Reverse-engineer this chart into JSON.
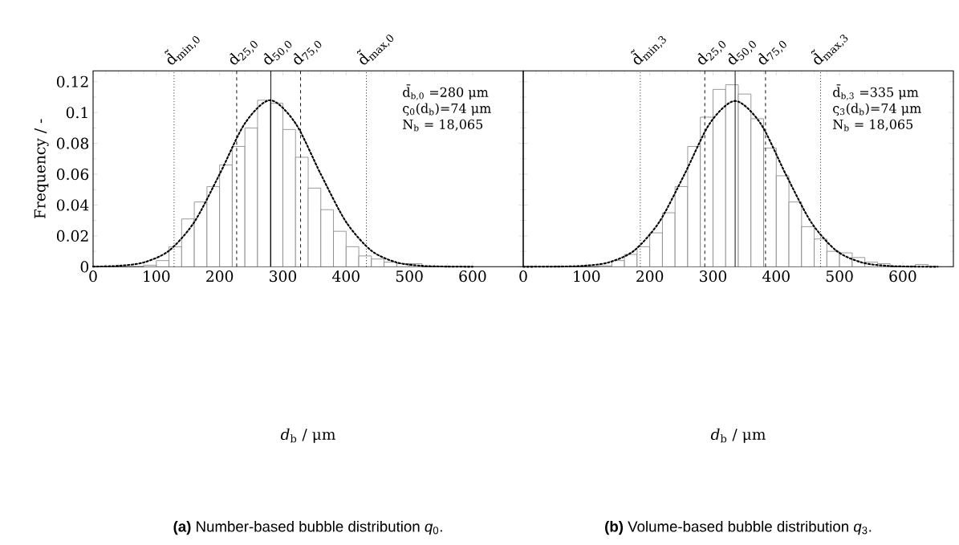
{
  "chart_data": [
    {
      "type": "histogram",
      "xlabel": "*d*$_{b}$ / μm",
      "ylabel": "Frequency / -",
      "color": "#808080",
      "bins": [
        80,
        100,
        120,
        140,
        160,
        180,
        200,
        220,
        240,
        260,
        280,
        300,
        320,
        340,
        360,
        380,
        400,
        420,
        440,
        460,
        480,
        500,
        520,
        540,
        560,
        580,
        600
      ],
      "values": [
        0.001,
        0.004,
        0.013,
        0.031,
        0.042,
        0.052,
        0.066,
        0.078,
        0.09,
        0.108,
        0.106,
        0.089,
        0.071,
        0.051,
        0.037,
        0.023,
        0.013,
        0.007,
        0.005,
        0.003,
        0.002,
        0.002,
        null,
        null,
        null,
        null
      ],
      "series": [
        {
          "type": "line",
          "line_style": "dotted",
          "color": "#000000",
          "x": [
            0,
            40,
            80,
            120,
            160,
            200,
            240,
            280,
            320,
            360,
            400,
            440,
            480,
            520,
            560,
            600
          ],
          "values": [
            0.0001,
            0.0006,
            0.0028,
            0.0104,
            0.029,
            0.06,
            0.093,
            0.108,
            0.093,
            0.06,
            0.029,
            0.0104,
            0.0028,
            0.0006,
            0.0001,
            0
          ]
        }
      ],
      "xlim": [
        0,
        680
      ],
      "ylim": [
        0,
        0.127
      ],
      "xticks": [
        0,
        100,
        200,
        300,
        400,
        500,
        600
      ],
      "yticks": [
        0,
        0.02,
        0.04,
        0.06,
        0.08,
        0.1,
        0.12
      ],
      "ref_lines": [
        {
          "axis": "x",
          "value": 128,
          "label": "d̃$_{min,0}$",
          "line_style": "dotted"
        },
        {
          "axis": "x",
          "value": 227,
          "label": "d$_{25,0}$",
          "line_style": "dashed"
        },
        {
          "axis": "x",
          "value": 281,
          "label": "d$_{50,0}$",
          "line_style": "solid"
        },
        {
          "axis": "x",
          "value": 328,
          "label": "d$_{75,0}$",
          "line_style": "dashed"
        },
        {
          "axis": "x",
          "value": 432,
          "label": "d̃$_{max,0}$",
          "line_style": "dotted"
        }
      ],
      "annotations": [
        "d̄$_{b,0}$ =280 μm",
        "ς$_{0}$(d$_{b}$)=74 μm",
        "N$_{b}$ = 18,065",
        "**(a)** Number-based bubble distribution *q*$_{0}$."
      ]
    },
    {
      "type": "histogram",
      "xlabel": "*d*$_{b}$ / μm",
      "color": "#808080",
      "tick_labels": "x",
      "bins": [
        120,
        140,
        160,
        180,
        200,
        220,
        240,
        260,
        280,
        300,
        320,
        340,
        360,
        380,
        400,
        420,
        440,
        460,
        480,
        500,
        520,
        540,
        560,
        580,
        600,
        620,
        640
      ],
      "values": [
        0.0005,
        0.004,
        0.008,
        0.013,
        0.022,
        0.035,
        0.052,
        0.078,
        0.097,
        0.115,
        0.118,
        0.112,
        0.096,
        0.077,
        0.059,
        0.042,
        0.026,
        0.018,
        0.01,
        0.009,
        0.006,
        0.003,
        0.002,
        null,
        null,
        0.0015
      ],
      "series": [
        {
          "type": "line",
          "line_style": "dotted",
          "color": "#000000",
          "x": [
            0,
            55,
            95,
            135,
            175,
            215,
            255,
            295,
            335,
            375,
            415,
            455,
            495,
            535,
            575,
            615,
            655
          ],
          "values": [
            0,
            0.0001,
            0.0006,
            0.0028,
            0.0104,
            0.029,
            0.06,
            0.093,
            0.1075,
            0.093,
            0.06,
            0.029,
            0.0104,
            0.0028,
            0.0006,
            0.0001,
            0
          ]
        }
      ],
      "xlim": [
        0,
        680
      ],
      "ylim": [
        0,
        0.127
      ],
      "xticks": [
        0,
        100,
        200,
        300,
        400,
        500,
        600
      ],
      "yticks": [
        0,
        0.02,
        0.04,
        0.06,
        0.08,
        0.1,
        0.12
      ],
      "ref_lines": [
        {
          "axis": "x",
          "value": 185,
          "label": "d̃$_{min,3}$",
          "line_style": "dotted"
        },
        {
          "axis": "x",
          "value": 287,
          "label": "d$_{25,0}$",
          "line_style": "dashed"
        },
        {
          "axis": "x",
          "value": 335,
          "label": "d$_{50,0}$",
          "line_style": "solid"
        },
        {
          "axis": "x",
          "value": 383,
          "label": "d$_{75,0}$",
          "line_style": "dashed"
        },
        {
          "axis": "x",
          "value": 470,
          "label": "d̃$_{max,3}$",
          "line_style": "dotted"
        }
      ],
      "annotations": [
        "d̄$_{b,3}$ =335 μm",
        "ς$_{3}$(d$_{b}$)=74 μm",
        "N$_{b}$ = 18,065",
        "**(b)** Volume-based bubble distribution *q*$_{3}$."
      ]
    }
  ]
}
